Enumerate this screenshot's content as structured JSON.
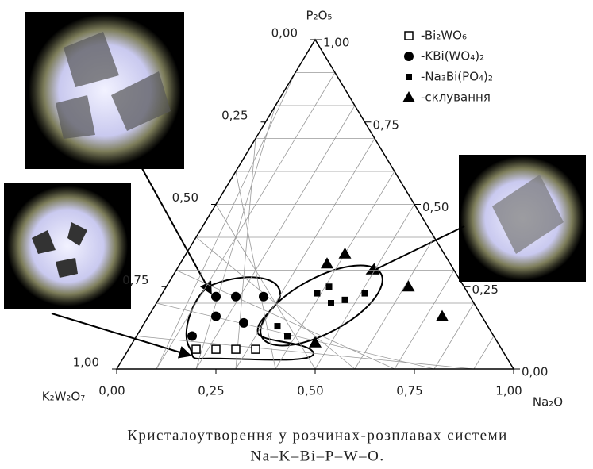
{
  "chart_data": {
    "type": "ternary",
    "vertices": {
      "top": "P₂O₅",
      "left": "K₂W₂O₇",
      "right": "Na₂O"
    },
    "grid_divisions": 10,
    "na2o_ticks": [
      {
        "value": 0,
        "label": "0,00"
      },
      {
        "value": 0.25,
        "label": "0,25"
      },
      {
        "value": 0.5,
        "label": "0,50"
      },
      {
        "value": 0.75,
        "label": "0,75"
      },
      {
        "value": 1,
        "label": "1,00"
      }
    ],
    "k2w2o7_ticks": [
      {
        "value": 0,
        "label": "0,00"
      },
      {
        "value": 0.25,
        "label": "0,25"
      },
      {
        "value": 0.5,
        "label": "0,50"
      },
      {
        "value": 0.75,
        "label": "0,75"
      },
      {
        "value": 1,
        "label": "1,00"
      }
    ],
    "p2o5_ticks": [
      {
        "value": 0,
        "label": "0,00"
      },
      {
        "value": 0.25,
        "label": "0,25"
      },
      {
        "value": 0.5,
        "label": "0,50"
      },
      {
        "value": 0.75,
        "label": "0,75"
      },
      {
        "value": 1,
        "label": "1,00"
      }
    ],
    "series": [
      {
        "name": "-Bi₂WO₆",
        "marker": "open-square",
        "color": "#000000",
        "na2o": [
          0.17,
          0.22,
          0.27,
          0.32
        ],
        "p2o5": [
          0.06,
          0.06,
          0.06,
          0.06
        ]
      },
      {
        "name": "-KBi(WO₄)₂",
        "marker": "circle",
        "color": "#000000",
        "na2o": [
          0.14,
          0.14,
          0.19,
          0.26,
          0.17,
          0.25
        ],
        "p2o5": [
          0.1,
          0.22,
          0.22,
          0.22,
          0.16,
          0.14
        ]
      },
      {
        "name": "-Na₃Bi(PO₄)₂",
        "marker": "square",
        "color": "#000000",
        "na2o": [
          0.38,
          0.34,
          0.39,
          0.41,
          0.44,
          0.47,
          0.51
        ],
        "p2o5": [
          0.1,
          0.13,
          0.23,
          0.25,
          0.2,
          0.21,
          0.23
        ]
      },
      {
        "name": "-склування",
        "marker": "triangle",
        "color": "#000000",
        "na2o": [
          0.46,
          0.37,
          0.4,
          0.61,
          0.74
        ],
        "p2o5": [
          0.08,
          0.32,
          0.35,
          0.25,
          0.16
        ]
      }
    ],
    "caption": [
      "Кристалоутворення у розчинах-розплавах системи",
      "Na–K–Bi–P–W–O."
    ]
  }
}
